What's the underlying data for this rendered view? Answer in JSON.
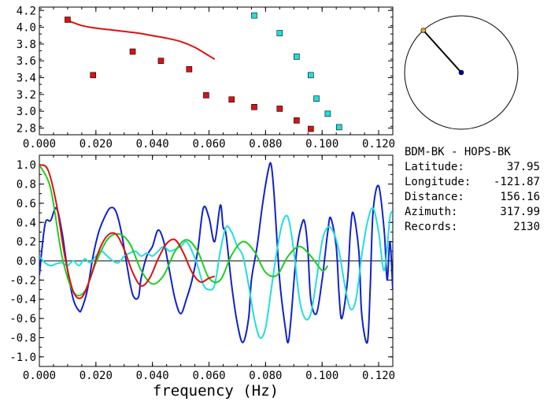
{
  "station_pair": "BDM-BK - HOPS-BK",
  "info": [
    {
      "label": "Latitude:",
      "value": "37.95"
    },
    {
      "label": "Longitude:",
      "value": "-121.87"
    },
    {
      "label": "Distance:",
      "value": "156.16"
    },
    {
      "label": "Azimuth:",
      "value": "317.99"
    },
    {
      "label": "Records:",
      "value": "2130"
    }
  ],
  "colors": {
    "red": "#dd1111",
    "cyan": "#22dddd",
    "blue": "#1122cc",
    "green": "#22cc22",
    "navy": "#0000aa",
    "orange": "#ddaa22"
  },
  "chart_data": [
    {
      "type": "scatter",
      "title": "",
      "xlabel": "",
      "ylabel": "",
      "xlim": [
        0.0,
        0.125
      ],
      "ylim": [
        2.72,
        4.24
      ],
      "x_ticks": [
        "0.000",
        "0.020",
        "0.040",
        "0.060",
        "0.080",
        "0.100",
        "0.120"
      ],
      "y_ticks": [
        "2.8",
        "3.0",
        "3.2",
        "3.4",
        "3.6",
        "3.8",
        "4.0",
        "4.2"
      ],
      "grid": false,
      "series": [
        {
          "marker": "square",
          "color": "red",
          "x": [
            0.01,
            0.019,
            0.033,
            0.043,
            0.053,
            0.059,
            0.068,
            0.076,
            0.085,
            0.091,
            0.096
          ],
          "y": [
            4.09,
            3.43,
            3.71,
            3.6,
            3.5,
            3.19,
            3.14,
            3.05,
            3.03,
            2.89,
            2.79
          ]
        },
        {
          "marker": "square",
          "color": "cyan",
          "x": [
            0.076,
            0.085,
            0.091,
            0.096,
            0.098,
            0.102,
            0.106
          ],
          "y": [
            4.14,
            3.93,
            3.65,
            3.43,
            3.15,
            2.97,
            2.81
          ]
        },
        {
          "marker": "line",
          "color": "red",
          "x": [
            0.01,
            0.015,
            0.02,
            0.025,
            0.03,
            0.035,
            0.04,
            0.045,
            0.05,
            0.055,
            0.06,
            0.062
          ],
          "y": [
            4.08,
            4.02,
            3.99,
            3.97,
            3.95,
            3.93,
            3.9,
            3.87,
            3.83,
            3.76,
            3.66,
            3.62
          ]
        }
      ]
    },
    {
      "type": "line",
      "title": "",
      "xlabel": "frequency (Hz)",
      "ylabel": "",
      "xlim": [
        0.0,
        0.125
      ],
      "ylim": [
        -1.1,
        1.1
      ],
      "x_ticks": [
        "0.000",
        "0.020",
        "0.040",
        "0.060",
        "0.080",
        "0.100",
        "0.120"
      ],
      "y_ticks": [
        "1.0",
        "0.8",
        "0.6",
        "0.4",
        "0.2",
        "0.0",
        "-0.2",
        "-0.4",
        "-0.6",
        "-0.8",
        "-1.0"
      ],
      "grid": false,
      "zero_line": true,
      "series": [
        {
          "color": "blue",
          "x": [
            0,
            0.002,
            0.004,
            0.006,
            0.008,
            0.01,
            0.012,
            0.014,
            0.015,
            0.017,
            0.019,
            0.021,
            0.023,
            0.025,
            0.027,
            0.029,
            0.031,
            0.033,
            0.035,
            0.036,
            0.038,
            0.04,
            0.042,
            0.044,
            0.046,
            0.048,
            0.05,
            0.052,
            0.054,
            0.056,
            0.058,
            0.06,
            0.062,
            0.064,
            0.065,
            0.066,
            0.068,
            0.07,
            0.072,
            0.074,
            0.075,
            0.077,
            0.079,
            0.081,
            0.082,
            0.083,
            0.085,
            0.087,
            0.088,
            0.089,
            0.091,
            0.093,
            0.094,
            0.095,
            0.096,
            0.098,
            0.1,
            0.101,
            0.102,
            0.103,
            0.105,
            0.106,
            0.107,
            0.109,
            0.11,
            0.111,
            0.113,
            0.114,
            0.116,
            0.117,
            0.118,
            0.12,
            0.122,
            0.123,
            0.124,
            0.125
          ],
          "y": [
            -0.15,
            0.38,
            0.42,
            0.55,
            0.3,
            -0.1,
            -0.4,
            -0.52,
            -0.5,
            -0.3,
            0.05,
            0.3,
            0.45,
            0.55,
            0.52,
            0.3,
            -0.05,
            -0.35,
            -0.38,
            -0.18,
            0.05,
            0.15,
            0.32,
            0.2,
            -0.1,
            -0.4,
            -0.55,
            -0.4,
            -0.2,
            0.1,
            0.55,
            0.45,
            0.2,
            0.58,
            0.35,
            0.28,
            -0.25,
            -0.65,
            -0.85,
            -0.6,
            -0.2,
            0.15,
            0.6,
            0.95,
            1.0,
            0.7,
            -0.2,
            -0.7,
            -0.85,
            -0.6,
            0.1,
            0.4,
            0.38,
            0.1,
            -0.4,
            -0.55,
            -0.2,
            0.05,
            0.3,
            0.45,
            0.15,
            -0.35,
            -0.6,
            -0.2,
            0.3,
            0.5,
            0.1,
            -0.55,
            -0.85,
            -0.3,
            0.5,
            0.78,
            0.3,
            -0.2,
            0.2,
            -0.3
          ]
        },
        {
          "color": "cyan",
          "x": [
            0,
            0.002,
            0.004,
            0.006,
            0.008,
            0.01,
            0.012,
            0.014,
            0.016,
            0.018,
            0.02,
            0.022,
            0.024,
            0.026,
            0.028,
            0.03,
            0.032,
            0.034,
            0.036,
            0.038,
            0.04,
            0.042,
            0.044,
            0.046,
            0.048,
            0.05,
            0.052,
            0.054,
            0.056,
            0.058,
            0.06,
            0.062,
            0.064,
            0.066,
            0.068,
            0.07,
            0.072,
            0.074,
            0.076,
            0.078,
            0.08,
            0.082,
            0.084,
            0.086,
            0.088,
            0.09,
            0.092,
            0.094,
            0.096,
            0.098,
            0.1,
            0.102,
            0.104,
            0.106,
            0.108,
            0.11,
            0.112,
            0.114,
            0.116,
            0.118,
            0.12,
            0.122,
            0.124,
            0.125
          ],
          "y": [
            0.05,
            -0.02,
            -0.05,
            -0.03,
            -0.02,
            -0.05,
            0.0,
            -0.05,
            0.02,
            -0.02,
            0.05,
            0.1,
            0.05,
            0.0,
            -0.02,
            0.05,
            0.08,
            0.1,
            0.05,
            0.08,
            0.05,
            0.1,
            0.15,
            0.1,
            0.12,
            0.15,
            0.2,
            0.1,
            -0.05,
            -0.25,
            -0.3,
            -0.25,
            0.1,
            0.35,
            0.3,
            0.15,
            0.05,
            -0.25,
            -0.6,
            -0.8,
            -0.7,
            -0.3,
            0.1,
            0.4,
            0.45,
            0.1,
            -0.4,
            -0.6,
            -0.55,
            -0.2,
            0.2,
            0.35,
            0.3,
            0.1,
            -0.25,
            -0.5,
            -0.4,
            0.05,
            0.4,
            0.55,
            0.3,
            -0.1,
            0.45,
            0.5
          ]
        },
        {
          "color": "green",
          "x": [
            0,
            0.004,
            0.008,
            0.012,
            0.016,
            0.02,
            0.024,
            0.028,
            0.032,
            0.036,
            0.04,
            0.044,
            0.048,
            0.052,
            0.056,
            0.06,
            0.064,
            0.068,
            0.072,
            0.076,
            0.08,
            0.084,
            0.088,
            0.092,
            0.096,
            0.1,
            0.102
          ],
          "y": [
            1.0,
            0.75,
            0.05,
            -0.32,
            -0.32,
            -0.02,
            0.22,
            0.28,
            0.18,
            -0.1,
            -0.24,
            -0.15,
            0.1,
            0.22,
            0.1,
            -0.18,
            -0.2,
            0.06,
            0.2,
            0.1,
            -0.12,
            -0.15,
            0.05,
            0.15,
            0.05,
            -0.1,
            -0.05
          ]
        },
        {
          "color": "red",
          "x": [
            0,
            0.003,
            0.006,
            0.009,
            0.012,
            0.015,
            0.018,
            0.021,
            0.024,
            0.027,
            0.03,
            0.033,
            0.036,
            0.039,
            0.042,
            0.045,
            0.048,
            0.051,
            0.054,
            0.057,
            0.06,
            0.062
          ],
          "y": [
            1.0,
            0.95,
            0.6,
            0.05,
            -0.32,
            -0.38,
            -0.18,
            0.1,
            0.26,
            0.28,
            0.12,
            -0.12,
            -0.26,
            -0.18,
            0.02,
            0.18,
            0.22,
            0.08,
            -0.12,
            -0.22,
            -0.18,
            -0.16
          ]
        }
      ]
    }
  ],
  "azimuth_dial": {
    "azimuth": 317.99
  }
}
